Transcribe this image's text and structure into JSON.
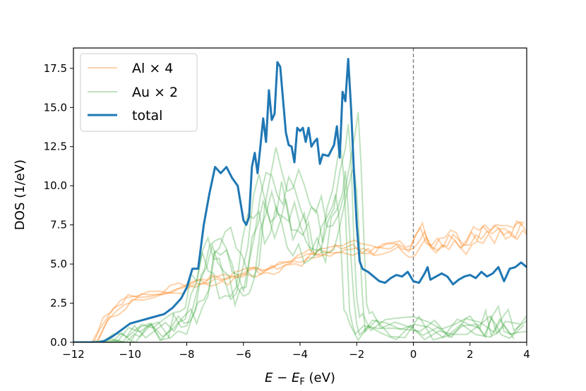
{
  "chart_data": {
    "type": "line",
    "title": "",
    "xlabel": "E − E_F (eV)",
    "xlabel_parts": {
      "E": "E",
      "minus": " − ",
      "EF": "E",
      "EF_sub": "F",
      "unit": " (eV)"
    },
    "ylabel": "DOS (1/eV)",
    "xlim": [
      -12,
      4
    ],
    "ylim": [
      0,
      18.8
    ],
    "x_ticks": [
      -12,
      -10,
      -8,
      -6,
      -4,
      -2,
      0,
      2,
      4
    ],
    "x_tick_labels": [
      "−12",
      "−10",
      "−8",
      "−6",
      "−4",
      "−2",
      "0",
      "2",
      "4"
    ],
    "y_ticks": [
      0,
      2.5,
      5,
      7.5,
      10,
      12.5,
      15,
      17.5
    ],
    "y_tick_labels": [
      "0.0",
      "2.5",
      "5.0",
      "7.5",
      "10.0",
      "12.5",
      "15.0",
      "17.5"
    ],
    "grid": false,
    "legend_position": "top-left",
    "fermi_level": {
      "x": 0,
      "style": "dashed",
      "color": "#808080"
    },
    "legend": [
      {
        "label": "Al × 4",
        "color": "#ff7f0e",
        "opacity": 0.35
      },
      {
        "label": "Au × 2",
        "color": "#2ca02c",
        "opacity": 0.3
      },
      {
        "label": "total",
        "color": "#1f77b4",
        "opacity": 1
      }
    ],
    "series": [
      {
        "name": "Al × 4",
        "group": "Al",
        "color": "#ff7f0e",
        "points": [
          [
            -12,
            0
          ],
          [
            -11.2,
            0
          ],
          [
            -11,
            0.8
          ],
          [
            -10.8,
            1.5
          ],
          [
            -10.5,
            2.0
          ],
          [
            -10.2,
            2.4
          ],
          [
            -10,
            2.7
          ],
          [
            -9.6,
            2.9
          ],
          [
            -9.2,
            3.0
          ],
          [
            -8.8,
            3.1
          ],
          [
            -8.5,
            3.3
          ],
          [
            -8.2,
            3.4
          ],
          [
            -8,
            3.6
          ],
          [
            -7.7,
            3.7
          ],
          [
            -7.4,
            3.8
          ],
          [
            -7.2,
            3.9
          ],
          [
            -7,
            4.0
          ],
          [
            -6.8,
            4.1
          ],
          [
            -6.6,
            4.0
          ],
          [
            -6.4,
            4.2
          ],
          [
            -6.2,
            4.3
          ],
          [
            -6,
            4.4
          ],
          [
            -5.8,
            4.4
          ],
          [
            -5.6,
            4.5
          ],
          [
            -5.4,
            4.5
          ],
          [
            -5.2,
            4.6
          ],
          [
            -5,
            4.7
          ],
          [
            -4.8,
            4.8
          ],
          [
            -4.6,
            4.9
          ],
          [
            -4.4,
            5.0
          ],
          [
            -4.2,
            5.1
          ],
          [
            -4,
            5.2
          ],
          [
            -3.8,
            5.4
          ],
          [
            -3.6,
            5.5
          ],
          [
            -3.4,
            5.6
          ],
          [
            -3.2,
            5.7
          ],
          [
            -3,
            5.7
          ],
          [
            -2.8,
            5.8
          ],
          [
            -2.6,
            5.9
          ],
          [
            -2.4,
            5.8
          ],
          [
            -2.2,
            6.0
          ],
          [
            -2,
            6.1
          ],
          [
            -1.8,
            5.9
          ],
          [
            -1.6,
            5.8
          ],
          [
            -1.4,
            5.7
          ],
          [
            -1.2,
            5.9
          ],
          [
            -1,
            6.0
          ],
          [
            -0.8,
            6.1
          ],
          [
            -0.6,
            6.2
          ],
          [
            -0.4,
            6.0
          ],
          [
            -0.2,
            5.8
          ],
          [
            0,
            5.9
          ],
          [
            0.2,
            6.6
          ],
          [
            0.4,
            7.2
          ],
          [
            0.6,
            6.1
          ],
          [
            0.8,
            5.9
          ],
          [
            1,
            6.4
          ],
          [
            1.2,
            6.2
          ],
          [
            1.4,
            6.8
          ],
          [
            1.6,
            6.5
          ],
          [
            1.8,
            6.0
          ],
          [
            2,
            6.3
          ],
          [
            2.2,
            6.9
          ],
          [
            2.4,
            6.6
          ],
          [
            2.6,
            7.1
          ],
          [
            2.8,
            6.8
          ],
          [
            3,
            7.3
          ],
          [
            3.2,
            6.9
          ],
          [
            3.4,
            7.2
          ],
          [
            3.6,
            6.8
          ],
          [
            3.8,
            7.5
          ],
          [
            4,
            7.2
          ]
        ]
      },
      {
        "name": "Au × 2",
        "group": "Au",
        "color": "#2ca02c",
        "points": [
          [
            -12,
            0
          ],
          [
            -11,
            0
          ],
          [
            -10.8,
            0.1
          ],
          [
            -10.5,
            0.3
          ],
          [
            -10.2,
            0.5
          ],
          [
            -10,
            0.6
          ],
          [
            -9.6,
            0.7
          ],
          [
            -9.2,
            0.8
          ],
          [
            -8.8,
            0.9
          ],
          [
            -8.5,
            1.1
          ],
          [
            -8.2,
            1.3
          ],
          [
            -8,
            1.6
          ],
          [
            -7.8,
            2.2
          ],
          [
            -7.6,
            3.2
          ],
          [
            -7.4,
            4.8
          ],
          [
            -7.2,
            6.1
          ],
          [
            -7,
            6.8
          ],
          [
            -6.8,
            6.3
          ],
          [
            -6.6,
            5.6
          ],
          [
            -6.4,
            4.6
          ],
          [
            -6.2,
            3.8
          ],
          [
            -6,
            3.4
          ],
          [
            -5.8,
            5.1
          ],
          [
            -5.6,
            7.6
          ],
          [
            -5.4,
            10.1
          ],
          [
            -5.2,
            11.6
          ],
          [
            -5,
            10.2
          ],
          [
            -4.8,
            8.6
          ],
          [
            -4.6,
            9.1
          ],
          [
            -4.4,
            10.6
          ],
          [
            -4.2,
            9.6
          ],
          [
            -4,
            8.1
          ],
          [
            -3.8,
            7.6
          ],
          [
            -3.6,
            8.6
          ],
          [
            -3.4,
            7.6
          ],
          [
            -3.2,
            6.6
          ],
          [
            -3,
            7.1
          ],
          [
            -2.8,
            9.1
          ],
          [
            -2.6,
            11.1
          ],
          [
            -2.4,
            12.6
          ],
          [
            -2.3,
            13.4
          ],
          [
            -2.2,
            11.0
          ],
          [
            -2.1,
            7.0
          ],
          [
            -2,
            3.0
          ],
          [
            -1.9,
            1.4
          ],
          [
            -1.8,
            1.2
          ],
          [
            -1.5,
            1.15
          ],
          [
            -1,
            1.1
          ],
          [
            -0.5,
            1.05
          ],
          [
            0,
            1.1
          ],
          [
            0.5,
            1.05
          ],
          [
            1,
            1.0
          ],
          [
            1.5,
            1.1
          ],
          [
            2,
            1.05
          ],
          [
            2.5,
            1.1
          ],
          [
            2.8,
            1.2
          ],
          [
            3,
            1.8
          ],
          [
            3.2,
            1.1
          ],
          [
            3.5,
            1.2
          ],
          [
            4,
            1.15
          ]
        ]
      },
      {
        "name": "total",
        "group": "total",
        "color": "#1f77b4",
        "points": [
          [
            -12,
            0
          ],
          [
            -11.1,
            0
          ],
          [
            -10.9,
            0.1
          ],
          [
            -10.6,
            0.4
          ],
          [
            -10.3,
            0.8
          ],
          [
            -10,
            1.2
          ],
          [
            -9.6,
            1.4
          ],
          [
            -9.2,
            1.6
          ],
          [
            -8.8,
            1.8
          ],
          [
            -8.5,
            2.2
          ],
          [
            -8.2,
            2.8
          ],
          [
            -8,
            3.5
          ],
          [
            -7.8,
            4.7
          ],
          [
            -7.6,
            4.7
          ],
          [
            -7.4,
            7.5
          ],
          [
            -7.2,
            9.5
          ],
          [
            -7,
            11.2
          ],
          [
            -6.8,
            10.8
          ],
          [
            -6.6,
            11.2
          ],
          [
            -6.4,
            10.5
          ],
          [
            -6.2,
            10.0
          ],
          [
            -6,
            7.8
          ],
          [
            -5.9,
            7.5
          ],
          [
            -5.8,
            8.0
          ],
          [
            -5.7,
            11.2
          ],
          [
            -5.6,
            12.1
          ],
          [
            -5.5,
            10.8
          ],
          [
            -5.4,
            12.5
          ],
          [
            -5.3,
            14.3
          ],
          [
            -5.2,
            12.8
          ],
          [
            -5.1,
            16.1
          ],
          [
            -5.0,
            14.2
          ],
          [
            -4.9,
            14.6
          ],
          [
            -4.8,
            17.9
          ],
          [
            -4.7,
            17.6
          ],
          [
            -4.6,
            15.5
          ],
          [
            -4.5,
            13.4
          ],
          [
            -4.4,
            12.6
          ],
          [
            -4.3,
            12.5
          ],
          [
            -4.2,
            11.5
          ],
          [
            -4.1,
            13.7
          ],
          [
            -4.0,
            13.5
          ],
          [
            -3.9,
            13.7
          ],
          [
            -3.8,
            12.8
          ],
          [
            -3.7,
            13.7
          ],
          [
            -3.6,
            12.5
          ],
          [
            -3.5,
            12.8
          ],
          [
            -3.4,
            13.0
          ],
          [
            -3.3,
            11.4
          ],
          [
            -3.2,
            12.0
          ],
          [
            -3.0,
            11.9
          ],
          [
            -2.8,
            12.6
          ],
          [
            -2.7,
            13.8
          ],
          [
            -2.6,
            11.8
          ],
          [
            -2.5,
            16.0
          ],
          [
            -2.4,
            15.4
          ],
          [
            -2.3,
            18.1
          ],
          [
            -2.2,
            15.0
          ],
          [
            -2.1,
            11.0
          ],
          [
            -2.0,
            7.5
          ],
          [
            -1.9,
            5.2
          ],
          [
            -1.8,
            4.7
          ],
          [
            -1.6,
            4.5
          ],
          [
            -1.4,
            4.2
          ],
          [
            -1.2,
            3.9
          ],
          [
            -1.0,
            3.8
          ],
          [
            -0.8,
            4.1
          ],
          [
            -0.6,
            4.3
          ],
          [
            -0.4,
            4.2
          ],
          [
            -0.2,
            4.5
          ],
          [
            0,
            3.9
          ],
          [
            0.2,
            3.8
          ],
          [
            0.4,
            4.4
          ],
          [
            0.5,
            4.8
          ],
          [
            0.6,
            4.0
          ],
          [
            0.8,
            4.2
          ],
          [
            1.0,
            4.4
          ],
          [
            1.2,
            4.2
          ],
          [
            1.4,
            3.7
          ],
          [
            1.6,
            4.0
          ],
          [
            1.8,
            4.2
          ],
          [
            2.0,
            4.3
          ],
          [
            2.2,
            4.1
          ],
          [
            2.4,
            4.5
          ],
          [
            2.6,
            4.2
          ],
          [
            2.8,
            4.4
          ],
          [
            3.0,
            4.8
          ],
          [
            3.2,
            3.9
          ],
          [
            3.4,
            4.7
          ],
          [
            3.6,
            4.8
          ],
          [
            3.8,
            5.1
          ],
          [
            4,
            4.8
          ]
        ]
      }
    ]
  }
}
